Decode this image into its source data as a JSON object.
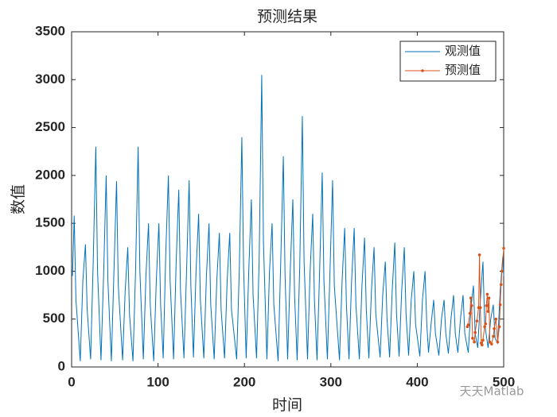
{
  "chart_data": {
    "type": "line",
    "title": "预测结果",
    "x_label": "时间",
    "y_label": "数值",
    "watermark": "天天Matlab",
    "xlim": [
      0,
      500
    ],
    "xticks": [
      0,
      100,
      200,
      300,
      400,
      500
    ],
    "ylim": [
      0,
      3500
    ],
    "yticks": [
      0,
      500,
      1000,
      1500,
      2000,
      2500,
      3000,
      3500
    ],
    "legend_position": "upper right",
    "series": [
      {
        "name": "观测值",
        "color": "#0072bd",
        "marker": false,
        "x": [
          1,
          3,
          5,
          10,
          13,
          16,
          18,
          22,
          25,
          28,
          30,
          34,
          37,
          40,
          42,
          46,
          49,
          52,
          54,
          59,
          62,
          65,
          67,
          71,
          74,
          77,
          79,
          83,
          86,
          89,
          91,
          95,
          98,
          101,
          103,
          106,
          109,
          112,
          114,
          118,
          121,
          124,
          126,
          130,
          133,
          136,
          138,
          141,
          144,
          147,
          149,
          153,
          156,
          159,
          161,
          165,
          168,
          171,
          173,
          177,
          180,
          183,
          185,
          191,
          194,
          197,
          199,
          202,
          205,
          208,
          210,
          214,
          217,
          220,
          222,
          226,
          229,
          232,
          234,
          239,
          242,
          245,
          247,
          250,
          253,
          256,
          258,
          261,
          264,
          267,
          269,
          273,
          276,
          279,
          281,
          284,
          287,
          290,
          292,
          296,
          299,
          302,
          304,
          310,
          313,
          316,
          318,
          321,
          324,
          327,
          329,
          333,
          336,
          339,
          341,
          344,
          347,
          350,
          352,
          357,
          360,
          363,
          365,
          368,
          371,
          374,
          376,
          379,
          382,
          385,
          387,
          390,
          393,
          396,
          398,
          403,
          406,
          409,
          411,
          413,
          416,
          419,
          421,
          425,
          428,
          431,
          433,
          436,
          439,
          442,
          444,
          447,
          450,
          453,
          455,
          459,
          462,
          465,
          467,
          470,
          473,
          476,
          478,
          482,
          485,
          488,
          490,
          493,
          496,
          499,
          500
        ],
        "values": [
          950,
          1580,
          700,
          60,
          900,
          1280,
          600,
          80,
          1100,
          2300,
          1000,
          70,
          950,
          2000,
          900,
          60,
          1000,
          1940,
          850,
          70,
          800,
          1250,
          550,
          60,
          1000,
          2300,
          1000,
          80,
          950,
          1500,
          650,
          60,
          900,
          1500,
          650,
          90,
          1200,
          2000,
          900,
          80,
          1100,
          1850,
          800,
          90,
          1000,
          1950,
          850,
          100,
          1000,
          1600,
          700,
          90,
          950,
          1500,
          650,
          80,
          900,
          1400,
          600,
          90,
          900,
          1400,
          600,
          80,
          1000,
          2400,
          1050,
          90,
          1000,
          1750,
          750,
          90,
          1100,
          3050,
          1300,
          80,
          1000,
          1500,
          650,
          60,
          1100,
          2200,
          950,
          80,
          1000,
          1750,
          750,
          70,
          1050,
          2620,
          1100,
          80,
          1000,
          1600,
          700,
          70,
          1000,
          2030,
          900,
          80,
          1000,
          1950,
          850,
          70,
          900,
          1450,
          650,
          80,
          900,
          1450,
          650,
          80,
          850,
          1350,
          600,
          90,
          800,
          1250,
          550,
          100,
          750,
          1100,
          500,
          100,
          800,
          1300,
          550,
          110,
          800,
          1250,
          550,
          120,
          700,
          1000,
          450,
          110,
          700,
          1000,
          450,
          150,
          450,
          700,
          350,
          120,
          500,
          700,
          350,
          140,
          500,
          750,
          350,
          150,
          500,
          750,
          350,
          150,
          600,
          850,
          350,
          200,
          700,
          1100,
          450,
          200,
          500,
          650,
          300,
          250,
          800,
          1150,
          950
        ]
      },
      {
        "name": "预测值",
        "color": "#d95319",
        "marker": true,
        "x": [
          458,
          459,
          461,
          462,
          463,
          464,
          466,
          467,
          469,
          471,
          472,
          473,
          474,
          475,
          476,
          478,
          479,
          480,
          481,
          482,
          483,
          484,
          486,
          488,
          489,
          491,
          493,
          495,
          496,
          497,
          498,
          500
        ],
        "values": [
          420,
          440,
          560,
          720,
          640,
          300,
          260,
          360,
          480,
          620,
          1170,
          620,
          250,
          230,
          280,
          420,
          450,
          640,
          760,
          580,
          720,
          260,
          240,
          320,
          400,
          500,
          260,
          420,
          650,
          860,
          1000,
          1240
        ]
      }
    ]
  }
}
